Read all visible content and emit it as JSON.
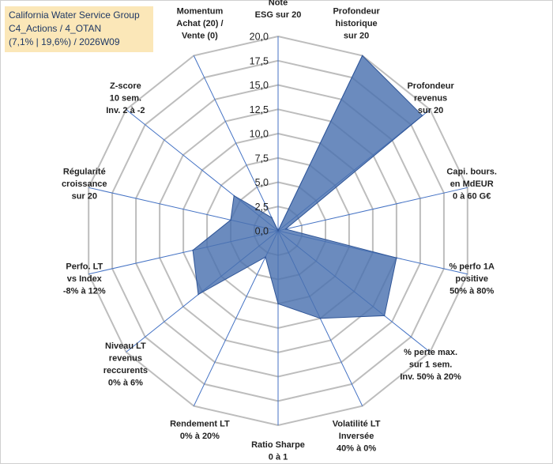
{
  "header": {
    "line1": "California Water Service Group",
    "line2": "C4_Actions / 4_OTAN",
    "line3": "(7,1% | 19,6%) / 2026W09"
  },
  "colors": {
    "fill": "#4a72b0",
    "stroke": "#2f5597",
    "grid": "#bdbdbd",
    "spoke": "#4472c4",
    "header_bg": "#fbe7b8",
    "header_text": "#1f3864"
  },
  "chart_data": {
    "type": "radar",
    "title": "",
    "rmin": 0,
    "rmax": 20,
    "ticks": [
      "0,0",
      "2,5",
      "5,0",
      "7,5",
      "10,0",
      "12,5",
      "15,0",
      "17,5",
      "20,0"
    ],
    "tick_values": [
      0,
      2.5,
      5,
      7.5,
      10,
      12.5,
      15,
      17.5,
      20
    ],
    "grid": true,
    "axes": [
      {
        "label": [
          "Note",
          "ESG sur 20"
        ],
        "value": 0.0
      },
      {
        "label": [
          "Profondeur",
          "historique",
          "sur 20"
        ],
        "value": 20.0
      },
      {
        "label": [
          "Profondeur",
          "revenus",
          "sur 20"
        ],
        "value": 19.0
      },
      {
        "label": [
          "Capi. bours.",
          "en MdEUR",
          "0 à 60 G€"
        ],
        "value": 0.8
      },
      {
        "label": [
          "% perfo 1A",
          "positive",
          "50% à 80%"
        ],
        "value": 12.5
      },
      {
        "label": [
          "% perte max.",
          "sur 1 sem.",
          "Inv. 50% à 20%"
        ],
        "value": 14.0
      },
      {
        "label": [
          "Volatilité LT",
          "Inversée",
          "40% à 0%"
        ],
        "value": 10.0
      },
      {
        "label": [
          "Ratio Sharpe",
          "0 à 1"
        ],
        "value": 7.5
      },
      {
        "label": [
          "Rendement LT",
          "0% à 20%"
        ],
        "value": 3.0
      },
      {
        "label": [
          "Niveau LT",
          "revenus",
          "reccurents",
          "0% à 6%"
        ],
        "value": 10.5
      },
      {
        "label": [
          "Perfo. LT",
          "vs Index",
          "-8% à 12%"
        ],
        "value": 9.0
      },
      {
        "label": [
          "Régularité",
          "croissance",
          "sur 20"
        ],
        "value": 5.0
      },
      {
        "label": [
          "Z-score",
          "10 sem.",
          "Inv. 2 à -2"
        ],
        "value": 5.8
      },
      {
        "label": [
          "Momentum",
          "Achat (20) /",
          "Vente (0)"
        ],
        "value": 1.5
      }
    ]
  }
}
